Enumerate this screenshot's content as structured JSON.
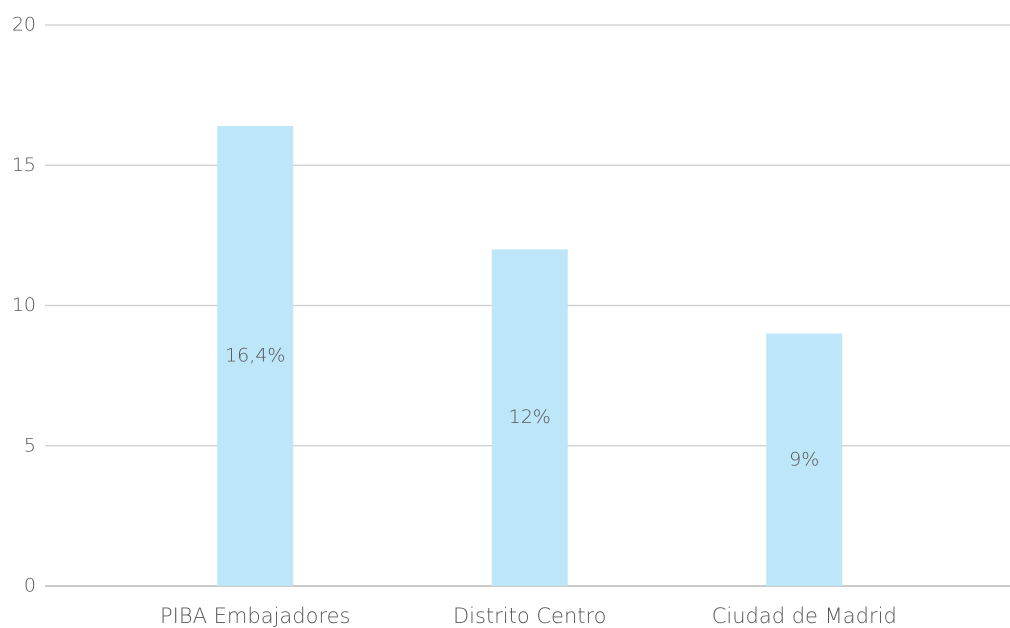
{
  "chart_data": {
    "type": "bar",
    "categories": [
      "PIBA Embajadores",
      "Distrito Centro",
      "Ciudad de Madrid"
    ],
    "values": [
      16.4,
      12,
      9
    ],
    "value_labels": [
      "16,4%",
      "12%",
      "9%"
    ],
    "color": "#bde6f8",
    "ylim": [
      0,
      20
    ],
    "yticks": [
      0,
      5,
      10,
      15,
      20
    ],
    "grid": true
  }
}
